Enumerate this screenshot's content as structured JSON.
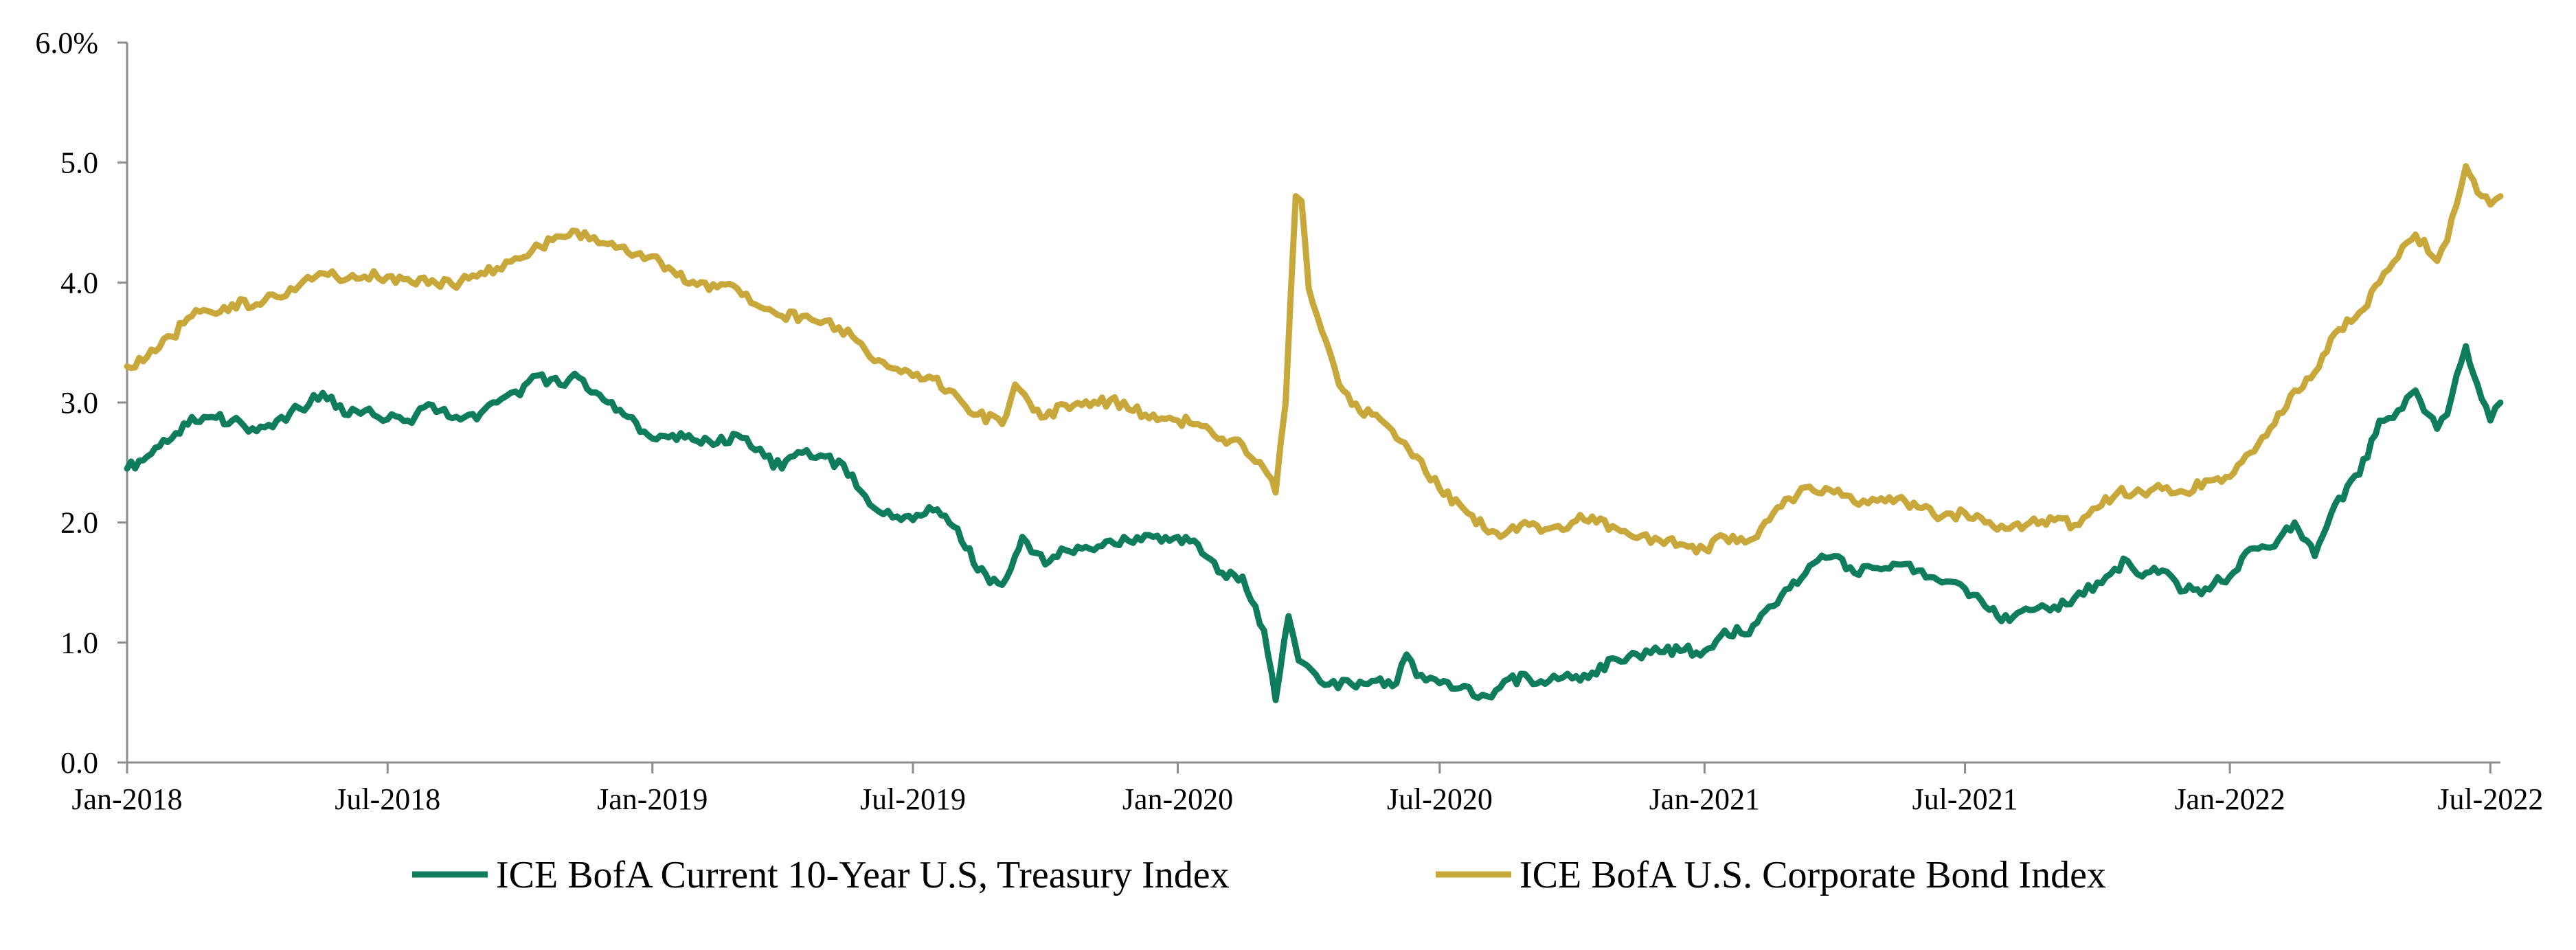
{
  "chart_data": {
    "type": "line",
    "title": "",
    "xlabel": "",
    "ylabel": "",
    "ylim": [
      0,
      6
    ],
    "y_ticks": [
      0,
      1,
      2,
      3,
      4,
      5,
      6
    ],
    "y_tick_labels": [
      "0.0",
      "1.0",
      "2.0",
      "3.0",
      "4.0",
      "5.0",
      "6.0%"
    ],
    "x_range": [
      "2018-01-01",
      "2022-07-08"
    ],
    "x_ticks": [
      "2018-01-01",
      "2018-07-01",
      "2019-01-01",
      "2019-07-01",
      "2020-01-01",
      "2020-07-01",
      "2021-01-01",
      "2021-07-01",
      "2022-01-01",
      "2022-07-01"
    ],
    "x_tick_labels": [
      "Jan-2018",
      "Jul-2018",
      "Jan-2019",
      "Jul-2019",
      "Jan-2020",
      "Jul-2020",
      "Jan-2021",
      "Jul-2021",
      "Jan-2022",
      "Jul-2022"
    ],
    "grid": false,
    "legend_position": "bottom",
    "series": [
      {
        "name": "ICE BofA Current 10-Year U.S, Treasury Index",
        "color": "#0f7d5c",
        "points": [
          [
            "2018-01-01",
            2.45
          ],
          [
            "2018-01-15",
            2.55
          ],
          [
            "2018-02-01",
            2.7
          ],
          [
            "2018-02-15",
            2.88
          ],
          [
            "2018-03-01",
            2.88
          ],
          [
            "2018-03-15",
            2.85
          ],
          [
            "2018-04-01",
            2.76
          ],
          [
            "2018-04-15",
            2.85
          ],
          [
            "2018-05-01",
            2.95
          ],
          [
            "2018-05-17",
            3.08
          ],
          [
            "2018-06-01",
            2.9
          ],
          [
            "2018-06-15",
            2.93
          ],
          [
            "2018-07-01",
            2.86
          ],
          [
            "2018-07-15",
            2.85
          ],
          [
            "2018-08-01",
            2.98
          ],
          [
            "2018-08-15",
            2.87
          ],
          [
            "2018-09-01",
            2.86
          ],
          [
            "2018-09-15",
            3.0
          ],
          [
            "2018-10-01",
            3.06
          ],
          [
            "2018-10-10",
            3.22
          ],
          [
            "2018-11-01",
            3.14
          ],
          [
            "2018-11-08",
            3.24
          ],
          [
            "2018-12-01",
            3.0
          ],
          [
            "2018-12-15",
            2.88
          ],
          [
            "2019-01-01",
            2.7
          ],
          [
            "2019-01-15",
            2.73
          ],
          [
            "2019-02-01",
            2.68
          ],
          [
            "2019-02-15",
            2.66
          ],
          [
            "2019-03-01",
            2.73
          ],
          [
            "2019-03-20",
            2.55
          ],
          [
            "2019-04-01",
            2.45
          ],
          [
            "2019-04-15",
            2.58
          ],
          [
            "2019-05-01",
            2.55
          ],
          [
            "2019-05-20",
            2.4
          ],
          [
            "2019-06-01",
            2.15
          ],
          [
            "2019-06-20",
            2.05
          ],
          [
            "2019-07-01",
            2.02
          ],
          [
            "2019-07-15",
            2.1
          ],
          [
            "2019-08-01",
            1.95
          ],
          [
            "2019-08-15",
            1.6
          ],
          [
            "2019-09-01",
            1.48
          ],
          [
            "2019-09-10",
            1.72
          ],
          [
            "2019-09-15",
            1.88
          ],
          [
            "2019-10-01",
            1.65
          ],
          [
            "2019-10-15",
            1.77
          ],
          [
            "2019-11-01",
            1.78
          ],
          [
            "2019-11-15",
            1.85
          ],
          [
            "2019-12-01",
            1.83
          ],
          [
            "2019-12-15",
            1.88
          ],
          [
            "2020-01-01",
            1.88
          ],
          [
            "2020-01-15",
            1.82
          ],
          [
            "2020-02-01",
            1.58
          ],
          [
            "2020-02-15",
            1.55
          ],
          [
            "2020-03-01",
            1.1
          ],
          [
            "2020-03-09",
            0.52
          ],
          [
            "2020-03-18",
            1.22
          ],
          [
            "2020-03-25",
            0.85
          ],
          [
            "2020-04-15",
            0.65
          ],
          [
            "2020-05-01",
            0.65
          ],
          [
            "2020-05-15",
            0.68
          ],
          [
            "2020-06-01",
            0.66
          ],
          [
            "2020-06-08",
            0.9
          ],
          [
            "2020-06-15",
            0.72
          ],
          [
            "2020-07-01",
            0.66
          ],
          [
            "2020-07-15",
            0.62
          ],
          [
            "2020-08-03",
            0.55
          ],
          [
            "2020-08-15",
            0.68
          ],
          [
            "2020-09-01",
            0.7
          ],
          [
            "2020-09-15",
            0.68
          ],
          [
            "2020-10-01",
            0.7
          ],
          [
            "2020-10-15",
            0.75
          ],
          [
            "2020-11-01",
            0.86
          ],
          [
            "2020-11-15",
            0.9
          ],
          [
            "2020-12-01",
            0.92
          ],
          [
            "2020-12-15",
            0.93
          ],
          [
            "2021-01-01",
            0.93
          ],
          [
            "2021-01-15",
            1.1
          ],
          [
            "2021-02-01",
            1.07
          ],
          [
            "2021-02-15",
            1.3
          ],
          [
            "2021-03-01",
            1.45
          ],
          [
            "2021-03-15",
            1.64
          ],
          [
            "2021-04-01",
            1.72
          ],
          [
            "2021-04-15",
            1.58
          ],
          [
            "2021-05-01",
            1.62
          ],
          [
            "2021-05-15",
            1.65
          ],
          [
            "2021-06-01",
            1.6
          ],
          [
            "2021-06-15",
            1.5
          ],
          [
            "2021-07-01",
            1.45
          ],
          [
            "2021-07-15",
            1.3
          ],
          [
            "2021-08-01",
            1.18
          ],
          [
            "2021-08-15",
            1.27
          ],
          [
            "2021-09-01",
            1.3
          ],
          [
            "2021-09-15",
            1.37
          ],
          [
            "2021-10-01",
            1.5
          ],
          [
            "2021-10-22",
            1.68
          ],
          [
            "2021-11-01",
            1.55
          ],
          [
            "2021-11-15",
            1.6
          ],
          [
            "2021-12-01",
            1.43
          ],
          [
            "2021-12-15",
            1.45
          ],
          [
            "2022-01-01",
            1.55
          ],
          [
            "2022-01-15",
            1.78
          ],
          [
            "2022-02-01",
            1.8
          ],
          [
            "2022-02-15",
            2.0
          ],
          [
            "2022-03-01",
            1.72
          ],
          [
            "2022-03-15",
            2.15
          ],
          [
            "2022-04-01",
            2.4
          ],
          [
            "2022-04-15",
            2.85
          ],
          [
            "2022-05-01",
            2.95
          ],
          [
            "2022-05-10",
            3.1
          ],
          [
            "2022-05-25",
            2.78
          ],
          [
            "2022-06-01",
            2.9
          ],
          [
            "2022-06-14",
            3.47
          ],
          [
            "2022-06-22",
            3.15
          ],
          [
            "2022-07-01",
            2.85
          ],
          [
            "2022-07-08",
            3.0
          ]
        ]
      },
      {
        "name": "ICE BofA U.S. Corporate Bond Index",
        "color": "#c8a83a",
        "points": [
          [
            "2018-01-01",
            3.3
          ],
          [
            "2018-01-15",
            3.38
          ],
          [
            "2018-02-01",
            3.55
          ],
          [
            "2018-02-15",
            3.72
          ],
          [
            "2018-03-01",
            3.75
          ],
          [
            "2018-03-15",
            3.82
          ],
          [
            "2018-04-01",
            3.82
          ],
          [
            "2018-04-15",
            3.88
          ],
          [
            "2018-05-01",
            3.98
          ],
          [
            "2018-05-15",
            4.08
          ],
          [
            "2018-06-01",
            4.02
          ],
          [
            "2018-06-15",
            4.05
          ],
          [
            "2018-07-01",
            4.05
          ],
          [
            "2018-07-15",
            4.03
          ],
          [
            "2018-08-01",
            4.02
          ],
          [
            "2018-08-15",
            3.98
          ],
          [
            "2018-09-01",
            4.05
          ],
          [
            "2018-09-15",
            4.12
          ],
          [
            "2018-10-01",
            4.2
          ],
          [
            "2018-10-15",
            4.3
          ],
          [
            "2018-11-01",
            4.38
          ],
          [
            "2018-11-15",
            4.42
          ],
          [
            "2018-12-01",
            4.32
          ],
          [
            "2018-12-15",
            4.25
          ],
          [
            "2019-01-01",
            4.22
          ],
          [
            "2019-01-15",
            4.1
          ],
          [
            "2019-02-01",
            3.98
          ],
          [
            "2019-02-15",
            3.96
          ],
          [
            "2019-03-01",
            3.95
          ],
          [
            "2019-03-20",
            3.78
          ],
          [
            "2019-04-01",
            3.72
          ],
          [
            "2019-04-15",
            3.72
          ],
          [
            "2019-05-01",
            3.68
          ],
          [
            "2019-05-20",
            3.55
          ],
          [
            "2019-06-01",
            3.38
          ],
          [
            "2019-06-20",
            3.28
          ],
          [
            "2019-07-01",
            3.22
          ],
          [
            "2019-07-15",
            3.2
          ],
          [
            "2019-08-01",
            3.05
          ],
          [
            "2019-08-15",
            2.9
          ],
          [
            "2019-09-01",
            2.82
          ],
          [
            "2019-09-10",
            3.15
          ],
          [
            "2019-09-20",
            3.0
          ],
          [
            "2019-10-01",
            2.88
          ],
          [
            "2019-10-15",
            2.98
          ],
          [
            "2019-11-01",
            2.97
          ],
          [
            "2019-11-15",
            3.02
          ],
          [
            "2019-12-01",
            2.93
          ],
          [
            "2019-12-15",
            2.9
          ],
          [
            "2020-01-01",
            2.85
          ],
          [
            "2020-01-15",
            2.82
          ],
          [
            "2020-02-01",
            2.7
          ],
          [
            "2020-02-15",
            2.65
          ],
          [
            "2020-03-01",
            2.45
          ],
          [
            "2020-03-09",
            2.25
          ],
          [
            "2020-03-16",
            3.0
          ],
          [
            "2020-03-23",
            4.72
          ],
          [
            "2020-03-27",
            4.68
          ],
          [
            "2020-04-01",
            3.95
          ],
          [
            "2020-04-10",
            3.6
          ],
          [
            "2020-04-22",
            3.15
          ],
          [
            "2020-05-01",
            2.98
          ],
          [
            "2020-05-15",
            2.9
          ],
          [
            "2020-06-01",
            2.7
          ],
          [
            "2020-06-15",
            2.55
          ],
          [
            "2020-07-01",
            2.28
          ],
          [
            "2020-07-15",
            2.15
          ],
          [
            "2020-08-01",
            1.95
          ],
          [
            "2020-08-15",
            1.9
          ],
          [
            "2020-09-01",
            1.98
          ],
          [
            "2020-09-15",
            1.95
          ],
          [
            "2020-10-01",
            2.0
          ],
          [
            "2020-10-15",
            2.05
          ],
          [
            "2020-11-01",
            1.95
          ],
          [
            "2020-11-15",
            1.87
          ],
          [
            "2020-12-01",
            1.85
          ],
          [
            "2020-12-15",
            1.82
          ],
          [
            "2021-01-01",
            1.78
          ],
          [
            "2021-01-15",
            1.88
          ],
          [
            "2021-02-01",
            1.85
          ],
          [
            "2021-02-15",
            2.02
          ],
          [
            "2021-03-01",
            2.2
          ],
          [
            "2021-03-15",
            2.3
          ],
          [
            "2021-04-01",
            2.25
          ],
          [
            "2021-04-15",
            2.17
          ],
          [
            "2021-05-01",
            2.18
          ],
          [
            "2021-05-15",
            2.2
          ],
          [
            "2021-06-01",
            2.12
          ],
          [
            "2021-06-15",
            2.05
          ],
          [
            "2021-07-01",
            2.08
          ],
          [
            "2021-07-15",
            2.0
          ],
          [
            "2021-08-01",
            1.95
          ],
          [
            "2021-08-15",
            2.0
          ],
          [
            "2021-09-01",
            2.02
          ],
          [
            "2021-09-15",
            1.98
          ],
          [
            "2021-10-01",
            2.12
          ],
          [
            "2021-10-15",
            2.25
          ],
          [
            "2021-11-01",
            2.25
          ],
          [
            "2021-11-15",
            2.28
          ],
          [
            "2021-12-01",
            2.25
          ],
          [
            "2021-12-15",
            2.35
          ],
          [
            "2022-01-01",
            2.38
          ],
          [
            "2022-01-15",
            2.58
          ],
          [
            "2022-02-01",
            2.82
          ],
          [
            "2022-02-15",
            3.1
          ],
          [
            "2022-03-01",
            3.25
          ],
          [
            "2022-03-15",
            3.58
          ],
          [
            "2022-04-01",
            3.75
          ],
          [
            "2022-04-15",
            4.0
          ],
          [
            "2022-05-01",
            4.3
          ],
          [
            "2022-05-10",
            4.4
          ],
          [
            "2022-05-25",
            4.18
          ],
          [
            "2022-06-01",
            4.35
          ],
          [
            "2022-06-14",
            4.97
          ],
          [
            "2022-06-22",
            4.75
          ],
          [
            "2022-07-01",
            4.65
          ],
          [
            "2022-07-08",
            4.72
          ]
        ]
      }
    ]
  }
}
